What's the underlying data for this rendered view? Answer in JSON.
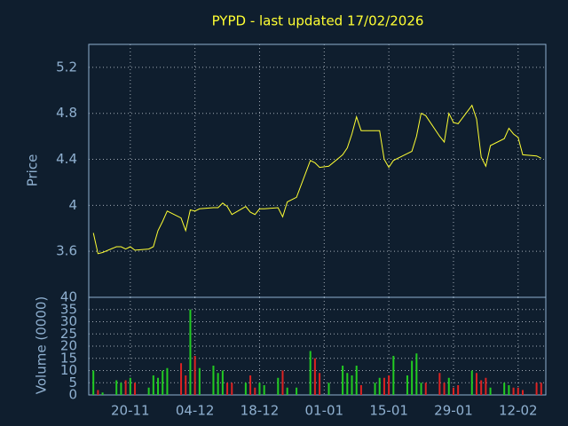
{
  "chart_data": {
    "type": "line",
    "title": "PYPD - last updated 17/02/2026",
    "ylabel": "Price",
    "color": "#ffff33",
    "grid": true,
    "x": [
      "12-11",
      "13-11",
      "14-11",
      "17-11",
      "18-11",
      "19-11",
      "20-11",
      "21-11",
      "24-11",
      "25-11",
      "26-11",
      "27-11",
      "28-11",
      "01-12",
      "02-12",
      "03-12",
      "04-12",
      "05-12",
      "08-12",
      "09-12",
      "10-12",
      "11-12",
      "12-12",
      "15-12",
      "16-12",
      "17-12",
      "18-12",
      "19-12",
      "22-12",
      "23-12",
      "24-12",
      "26-12",
      "29-12",
      "30-12",
      "31-12",
      "02-01",
      "05-01",
      "06-01",
      "07-01",
      "08-01",
      "09-01",
      "12-01",
      "13-01",
      "14-01",
      "15-01",
      "16-01",
      "19-01",
      "20-01",
      "21-01",
      "22-01",
      "23-01",
      "26-01",
      "27-01",
      "28-01",
      "29-01",
      "30-01",
      "02-02",
      "03-02",
      "04-02",
      "05-02",
      "06-02",
      "09-02",
      "10-02",
      "11-02",
      "12-02",
      "13-02",
      "16-02",
      "17-02"
    ],
    "values": [
      3.76,
      3.58,
      3.59,
      3.64,
      3.64,
      3.62,
      3.64,
      3.61,
      3.62,
      3.64,
      3.78,
      3.86,
      3.95,
      3.89,
      3.78,
      3.96,
      3.95,
      3.97,
      3.98,
      3.98,
      4.02,
      3.99,
      3.92,
      3.99,
      3.94,
      3.92,
      3.97,
      3.97,
      3.98,
      3.9,
      4.03,
      4.07,
      4.39,
      4.37,
      4.33,
      4.34,
      4.44,
      4.5,
      4.62,
      4.77,
      4.65,
      4.65,
      4.65,
      4.4,
      4.33,
      4.39,
      4.45,
      4.47,
      4.6,
      4.8,
      4.78,
      4.6,
      4.55,
      4.8,
      4.72,
      4.71,
      4.87,
      4.75,
      4.42,
      4.34,
      4.52,
      4.58,
      4.67,
      4.62,
      4.59,
      4.44,
      4.43,
      4.41
    ],
    "xlim": [
      "11-11",
      "18-02"
    ],
    "xticks": [
      "20-11",
      "04-12",
      "18-12",
      "01-01",
      "15-01",
      "29-01",
      "12-02"
    ],
    "ylim": [
      3.2,
      5.4
    ],
    "yticks": [
      3.6,
      4,
      4.4,
      4.8,
      5.2
    ],
    "volume": {
      "type": "bar",
      "ylabel": "Volume (0000)",
      "up_color": "#22cc22",
      "down_color": "#dd2222",
      "values": [
        10,
        2,
        1,
        6,
        5,
        6,
        7,
        5,
        3,
        8,
        7,
        10,
        11,
        13,
        8,
        35,
        16,
        11,
        12,
        9,
        10,
        5,
        5,
        5,
        8,
        3,
        5,
        4,
        7,
        10,
        3,
        3,
        18,
        15,
        9,
        5,
        12,
        9,
        8,
        12,
        4,
        5,
        7,
        7,
        8,
        16,
        8,
        14,
        17,
        5,
        5,
        9,
        5,
        7,
        3,
        4,
        10,
        9,
        6,
        7,
        3,
        5,
        4,
        3,
        3,
        2,
        5,
        5
      ],
      "ylim": [
        0,
        40
      ],
      "yticks": [
        0,
        5,
        10,
        15,
        20,
        25,
        30,
        35,
        40
      ]
    }
  }
}
